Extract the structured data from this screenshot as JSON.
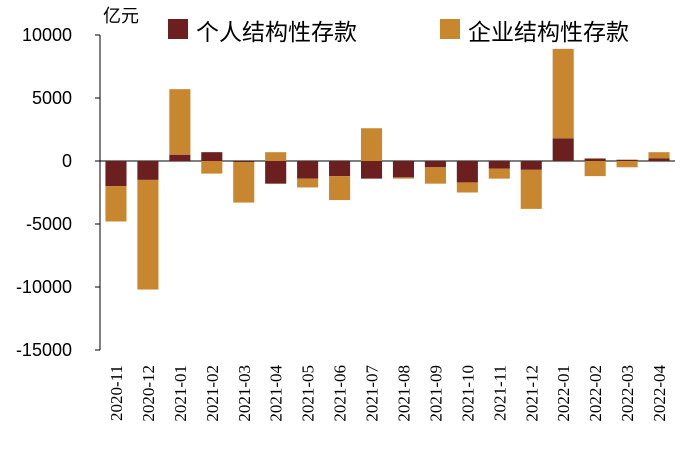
{
  "chart_data": {
    "type": "bar",
    "stacked": true,
    "unit": "亿元",
    "categories": [
      "2020-11",
      "2020-12",
      "2021-01",
      "2021-02",
      "2021-03",
      "2021-04",
      "2021-05",
      "2021-06",
      "2021-07",
      "2021-08",
      "2021-09",
      "2021-10",
      "2021-11",
      "2021-12",
      "2022-01",
      "2022-02",
      "2022-03",
      "2022-04"
    ],
    "series": [
      {
        "name": "个人结构性存款",
        "color": "#6b1f1f",
        "values": [
          -2000,
          -1500,
          500,
          700,
          -100,
          -1800,
          -1400,
          -1200,
          -1400,
          -1300,
          -500,
          -1700,
          -600,
          -700,
          1800,
          200,
          100,
          200
        ]
      },
      {
        "name": "企业结构性存款",
        "color": "#c8872e",
        "values": [
          -2800,
          -8700,
          5200,
          -1000,
          -3200,
          700,
          -700,
          -1900,
          2600,
          -100,
          -1300,
          -800,
          -800,
          -3100,
          7100,
          -1200,
          -500,
          500
        ]
      }
    ],
    "ylim": [
      -15000,
      10000
    ],
    "yticks": [
      10000,
      5000,
      0,
      -5000,
      -10000,
      -15000
    ],
    "legend_position": "top",
    "grid": false
  }
}
